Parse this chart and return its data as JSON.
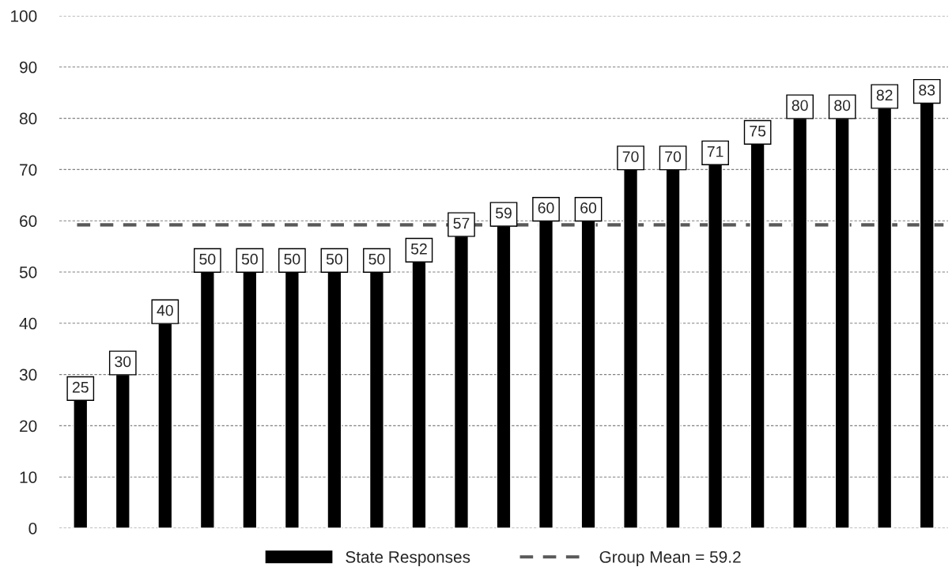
{
  "chart_data": {
    "type": "bar",
    "categories": [
      null,
      null,
      null,
      null,
      null,
      null,
      null,
      null,
      null,
      null,
      null,
      null,
      null,
      null,
      null,
      null,
      null,
      null,
      null,
      null,
      null
    ],
    "series": [
      {
        "name": "State Responses",
        "color": "#000000",
        "values": [
          25,
          30,
          40,
          50,
          50,
          50,
          50,
          50,
          52,
          57,
          59,
          60,
          60,
          70,
          70,
          71,
          75,
          80,
          80,
          82,
          83
        ]
      }
    ],
    "ylim": [
      0,
      100
    ],
    "yticks": [
      0,
      10,
      20,
      30,
      40,
      50,
      60,
      70,
      80,
      90,
      100
    ],
    "ref_lines": [
      {
        "axis": "y",
        "value": 59.2,
        "label": "Group Mean = 59.2",
        "color": "#595959",
        "line_style": "dashed"
      }
    ],
    "grid": "y",
    "legend": "bottom",
    "data_labels": true
  }
}
